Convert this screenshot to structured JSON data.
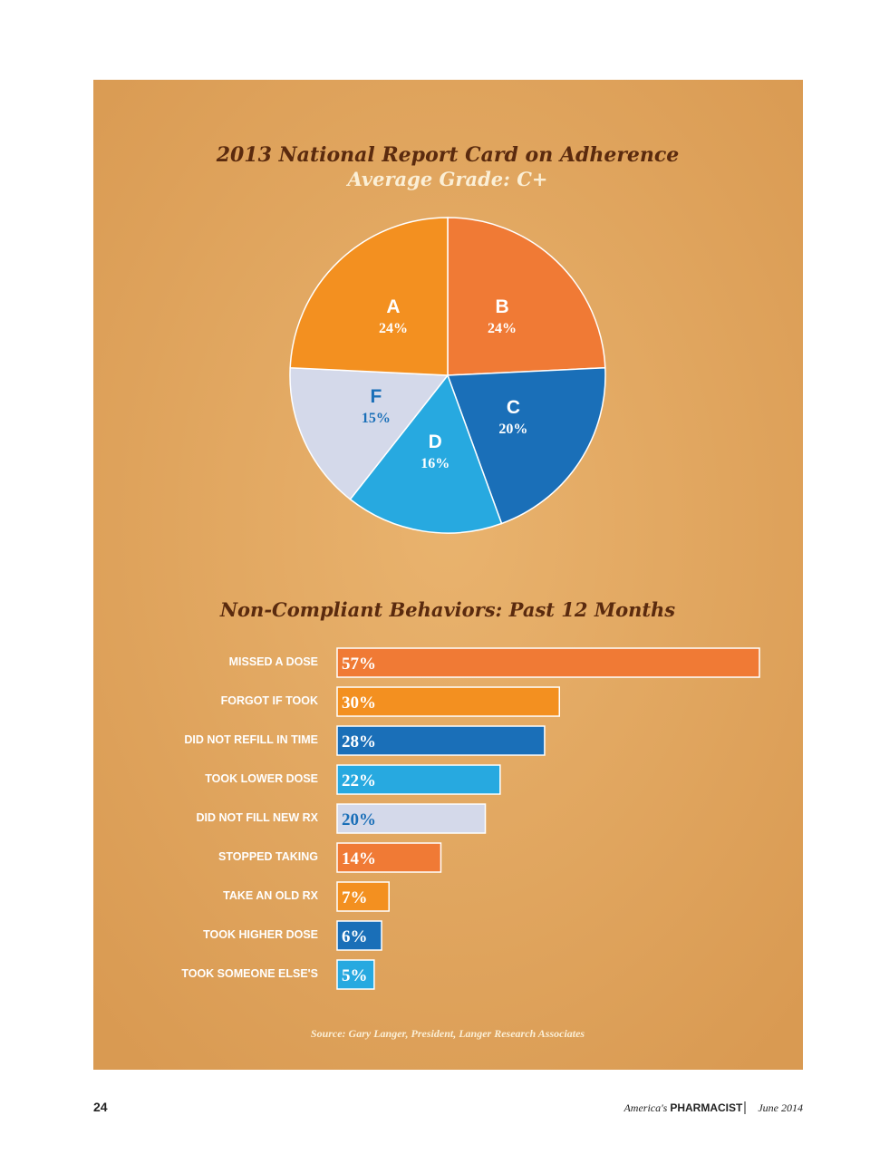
{
  "chart_data": [
    {
      "type": "pie",
      "title": "2013 National Report Card on Adherence",
      "subtitle": "Average Grade: C+",
      "categories": [
        "B",
        "C",
        "D",
        "F",
        "A"
      ],
      "values": [
        24,
        20,
        16,
        15,
        24
      ],
      "value_labels": [
        "24%",
        "20%",
        "16%",
        "15%",
        "24%"
      ],
      "colors": [
        "#f07a35",
        "#1a6fb8",
        "#27a9e0",
        "#d4d9ea",
        "#f39020"
      ],
      "label_colors": [
        "#ffffff",
        "#ffffff",
        "#ffffff",
        "#1a6fb8",
        "#ffffff"
      ]
    },
    {
      "type": "hbar",
      "title": "Non-Compliant Behaviors: Past 12 Months",
      "categories": [
        "MISSED A DOSE",
        "FORGOT IF TOOK",
        "DID NOT REFILL IN TIME",
        "TOOK LOWER DOSE",
        "DID NOT FILL NEW RX",
        "STOPPED TAKING",
        "TAKE AN OLD RX",
        "TOOK HIGHER DOSE",
        "TOOK SOMEONE ELSE'S"
      ],
      "values": [
        57,
        30,
        28,
        22,
        20,
        14,
        7,
        6,
        5
      ],
      "value_labels": [
        "57%",
        "30%",
        "28%",
        "22%",
        "20%",
        "14%",
        "7%",
        "6%",
        "5%"
      ],
      "colors": [
        "#f07a35",
        "#f39020",
        "#1a6fb8",
        "#27a9e0",
        "#d4d9ea",
        "#f07a35",
        "#f39020",
        "#1a6fb8",
        "#27a9e0"
      ],
      "label_colors": [
        "#ffffff",
        "#ffffff",
        "#ffffff",
        "#ffffff",
        "#1a6fb8",
        "#ffffff",
        "#ffffff",
        "#ffffff",
        "#ffffff"
      ],
      "source": "Source: Gary Langer, President, Langer Research Associates"
    }
  ],
  "page": {
    "number": "24",
    "publication_prefix": "America's",
    "publication": "PHARMACIST",
    "issue": "June 2014"
  }
}
